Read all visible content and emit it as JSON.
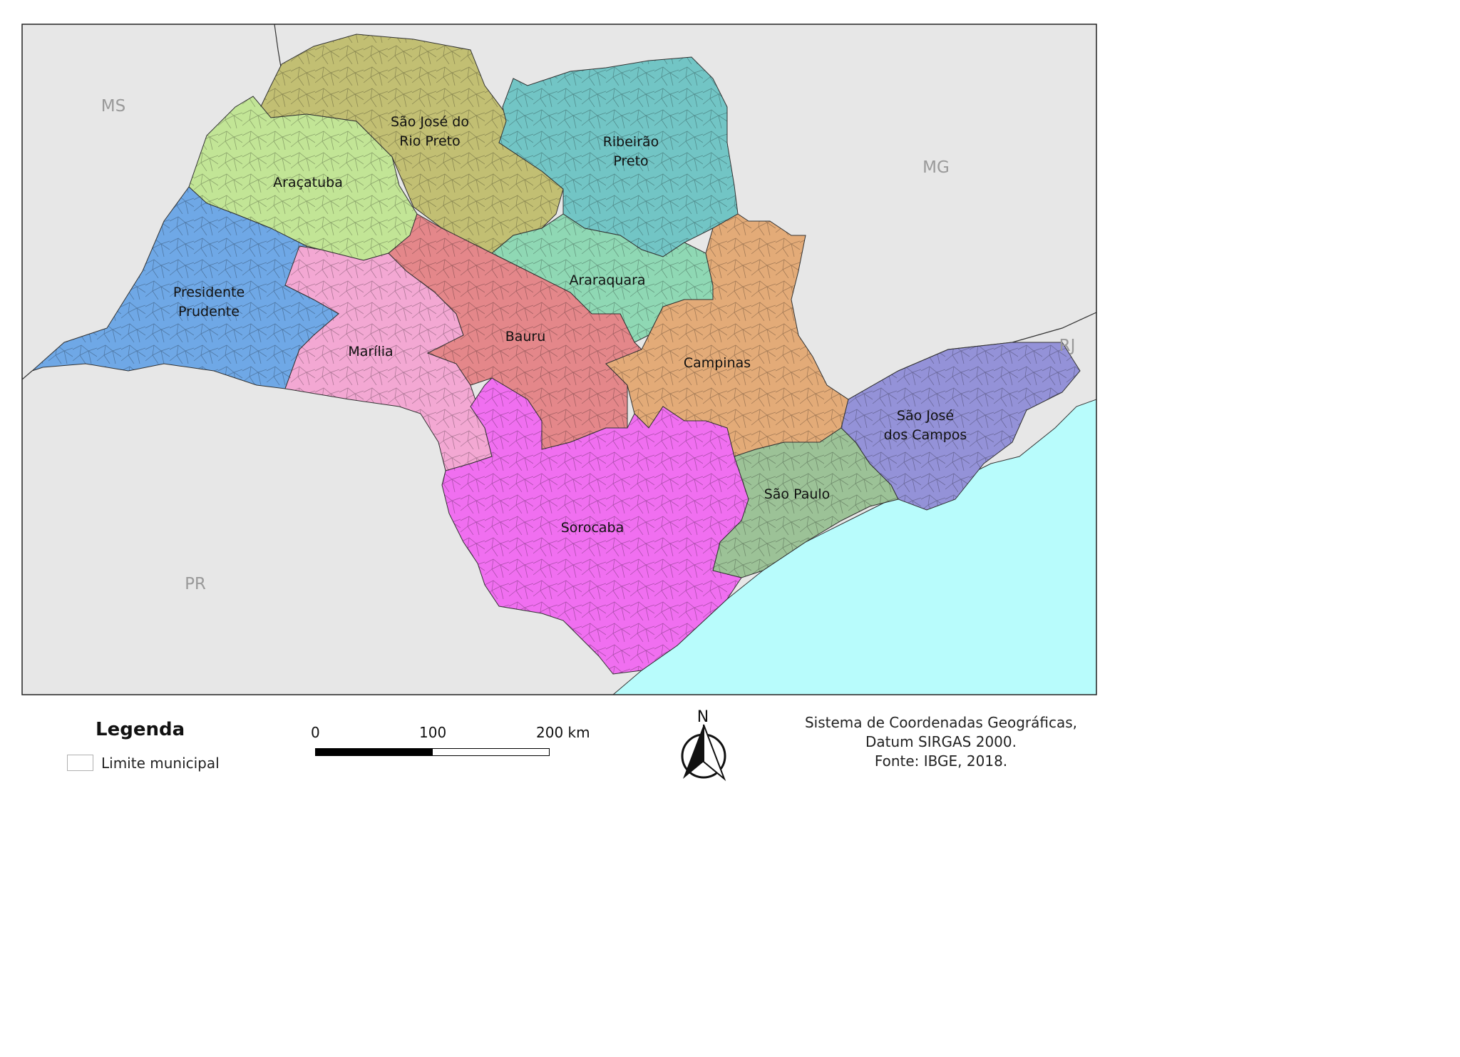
{
  "regions": [
    {
      "name": "São José do",
      "name2": "Rio Preto",
      "color": "#c2bf73"
    },
    {
      "name": "Ribeirão",
      "name2": "Preto",
      "color": "#72c5c5"
    },
    {
      "name": "Araçatuba",
      "color": "#c2e596"
    },
    {
      "name": "Presidente",
      "name2": "Prudente",
      "color": "#6fa8e6"
    },
    {
      "name": "Araraquara",
      "color": "#8fd8b4"
    },
    {
      "name": "Marília",
      "color": "#f3a8d3"
    },
    {
      "name": "Bauru",
      "color": "#e4878a"
    },
    {
      "name": "Campinas",
      "color": "#e3ab78"
    },
    {
      "name": "São José",
      "name2": "dos Campos",
      "color": "#9492d8"
    },
    {
      "name": "São Paulo",
      "color": "#9cc297"
    },
    {
      "name": "Sorocaba",
      "color": "#f06ff0"
    }
  ],
  "states": [
    "MS",
    "MG",
    "RJ",
    "PR"
  ],
  "colors": {
    "outside": "#e7e7e7",
    "ocean": "#b8fcfc",
    "border": "#333333"
  },
  "legend": {
    "title": "Legenda",
    "item": "Limite municipal"
  },
  "scale": {
    "ticks": [
      "0",
      "100",
      "200 km"
    ]
  },
  "north_arrow": {
    "letter": "N"
  },
  "credits": [
    "Sistema de Coordenadas Geográficas,",
    "Datum SIRGAS 2000.",
    "Fonte: IBGE, 2018."
  ]
}
